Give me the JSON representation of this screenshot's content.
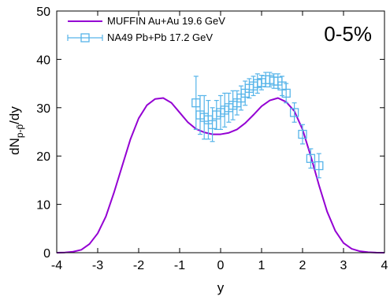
{
  "chart_data": {
    "type": "line",
    "annotation": "0-5%",
    "xlabel": "y",
    "ylabel": "dN_{p-p̄}/dy",
    "xlim": [
      -4,
      4
    ],
    "ylim": [
      0,
      50
    ],
    "x_ticks": [
      "-4",
      "-3",
      "-2",
      "-1",
      "0",
      "1",
      "2",
      "3",
      "4"
    ],
    "y_ticks": [
      "0",
      "10",
      "20",
      "30",
      "40",
      "50"
    ],
    "grid": false,
    "legend_position": "top-left",
    "series": [
      {
        "name": "MUFFIN Au+Au 19.6 GeV",
        "kind": "line",
        "color": "#9400d3",
        "x": [
          -4.0,
          -3.8,
          -3.6,
          -3.4,
          -3.2,
          -3.0,
          -2.8,
          -2.6,
          -2.4,
          -2.2,
          -2.0,
          -1.8,
          -1.6,
          -1.4,
          -1.2,
          -1.0,
          -0.8,
          -0.6,
          -0.4,
          -0.2,
          0.0,
          0.2,
          0.4,
          0.6,
          0.8,
          1.0,
          1.2,
          1.4,
          1.6,
          1.8,
          2.0,
          2.2,
          2.4,
          2.6,
          2.8,
          3.0,
          3.2,
          3.4,
          3.6,
          3.8,
          4.0
        ],
        "y": [
          0.0,
          0.05,
          0.2,
          0.6,
          1.8,
          4.0,
          7.5,
          12.5,
          18.0,
          23.5,
          27.8,
          30.5,
          31.8,
          32.0,
          31.0,
          29.0,
          27.0,
          25.6,
          24.9,
          24.5,
          24.5,
          24.8,
          25.5,
          26.8,
          28.5,
          30.3,
          31.5,
          32.0,
          31.2,
          29.3,
          25.5,
          20.0,
          14.0,
          8.5,
          4.5,
          2.0,
          0.8,
          0.3,
          0.1,
          0.02,
          0.0
        ]
      },
      {
        "name": "NA49 Pb+Pb 17.2 GeV",
        "kind": "points-errorbars",
        "color": "#56b4e9",
        "x": [
          -0.6,
          -0.5,
          -0.4,
          -0.3,
          -0.2,
          -0.1,
          0.0,
          0.1,
          0.2,
          0.3,
          0.4,
          0.5,
          0.6,
          0.7,
          0.8,
          0.9,
          1.0,
          1.1,
          1.2,
          1.3,
          1.4,
          1.5,
          1.6,
          1.8,
          2.0,
          2.2,
          2.4
        ],
        "y": [
          31.0,
          28.5,
          28.0,
          27.5,
          26.5,
          28.5,
          29.0,
          29.5,
          30.0,
          30.5,
          31.0,
          32.0,
          33.0,
          34.0,
          34.5,
          35.0,
          35.2,
          35.8,
          35.8,
          35.5,
          35.5,
          34.5,
          33.0,
          29.0,
          24.5,
          19.5,
          18.0
        ],
        "err": [
          5.5,
          4.0,
          4.5,
          4.0,
          3.5,
          3.0,
          3.5,
          3.5,
          3.0,
          3.0,
          2.5,
          2.5,
          2.5,
          2.0,
          2.0,
          2.0,
          1.5,
          1.5,
          1.5,
          1.5,
          1.5,
          2.0,
          2.0,
          2.0,
          2.0,
          2.0,
          2.5
        ]
      }
    ]
  }
}
